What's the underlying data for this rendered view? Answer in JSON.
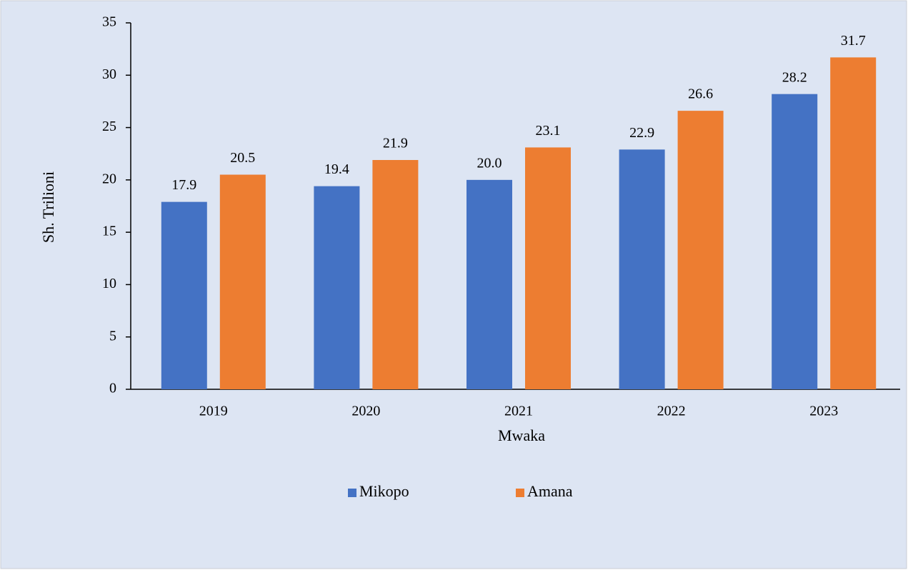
{
  "chart_data": {
    "type": "bar",
    "categories": [
      "2019",
      "2020",
      "2021",
      "2022",
      "2023"
    ],
    "series": [
      {
        "name": "Mikopo",
        "color": "#4472c4",
        "values": [
          17.9,
          19.4,
          20.0,
          22.9,
          28.2
        ],
        "value_labels": [
          "17.9",
          "19.4",
          "20.0",
          "22.9",
          "28.2"
        ]
      },
      {
        "name": "Amana",
        "color": "#ed7d31",
        "values": [
          20.5,
          21.9,
          23.1,
          26.6,
          31.7
        ],
        "value_labels": [
          "20.5",
          "21.9",
          "23.1",
          "26.6",
          "31.7"
        ]
      }
    ],
    "ylabel": "Sh. Trilioni",
    "xlabel": "Mwaka",
    "ylim": [
      0,
      35
    ],
    "yticks": [
      0,
      5,
      10,
      15,
      20,
      25,
      30,
      35
    ],
    "legend": "bottom"
  }
}
